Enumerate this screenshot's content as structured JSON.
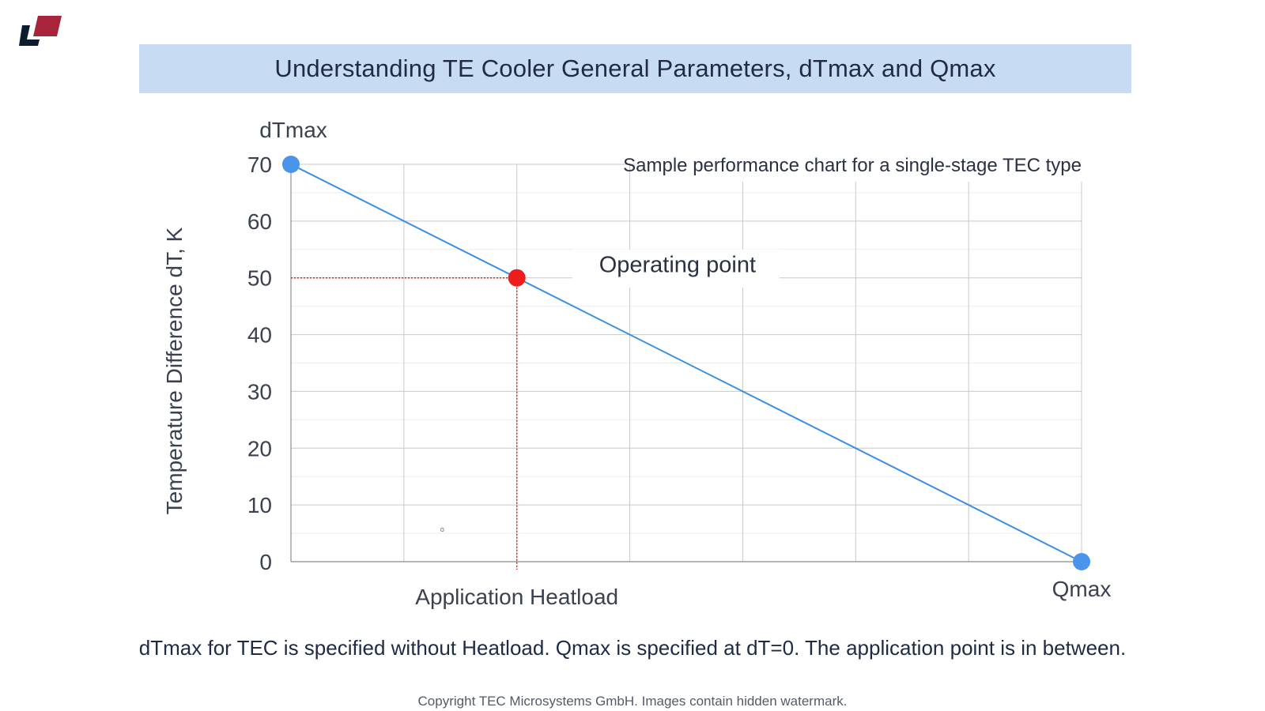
{
  "header": {
    "title": "Understanding TE Cooler General Parameters, dTmax and Qmax"
  },
  "logo": {
    "icon": "company-logo-icon",
    "colors": [
      "#0d1b2e",
      "#a8243b"
    ]
  },
  "chart_data": {
    "type": "line",
    "subtitle": "Sample performance chart for a single-stage TEC type",
    "ylabel": "Temperature Difference dT, K",
    "y_top_label": "dTmax",
    "xlabel": "Application Heatload",
    "x_end_label": "Qmax",
    "ylim": [
      0,
      70
    ],
    "xlim": [
      0,
      7
    ],
    "yticks": [
      0,
      10,
      20,
      30,
      40,
      50,
      60,
      70
    ],
    "grid": true,
    "series": [
      {
        "points": [
          [
            0,
            70
          ],
          [
            7,
            0
          ]
        ],
        "color": "#3b8ee0"
      }
    ],
    "markers": [
      {
        "x": 0,
        "y": 70,
        "color": "#4a94ec",
        "role": "dTmax"
      },
      {
        "x": 2,
        "y": 50,
        "color": "#ee1c1c",
        "role": "operating-point",
        "label": "Operating point"
      },
      {
        "x": 7,
        "y": 0,
        "color": "#4a94ec",
        "role": "Qmax"
      }
    ],
    "stray_mark": "o"
  },
  "caption": "dTmax for TEC is specified without Heatload. Qmax is specified at dT=0. The application point is in between.",
  "footer": {
    "copyright": "Copyright TEC Microsystems GmbH. Images contain hidden watermark."
  }
}
